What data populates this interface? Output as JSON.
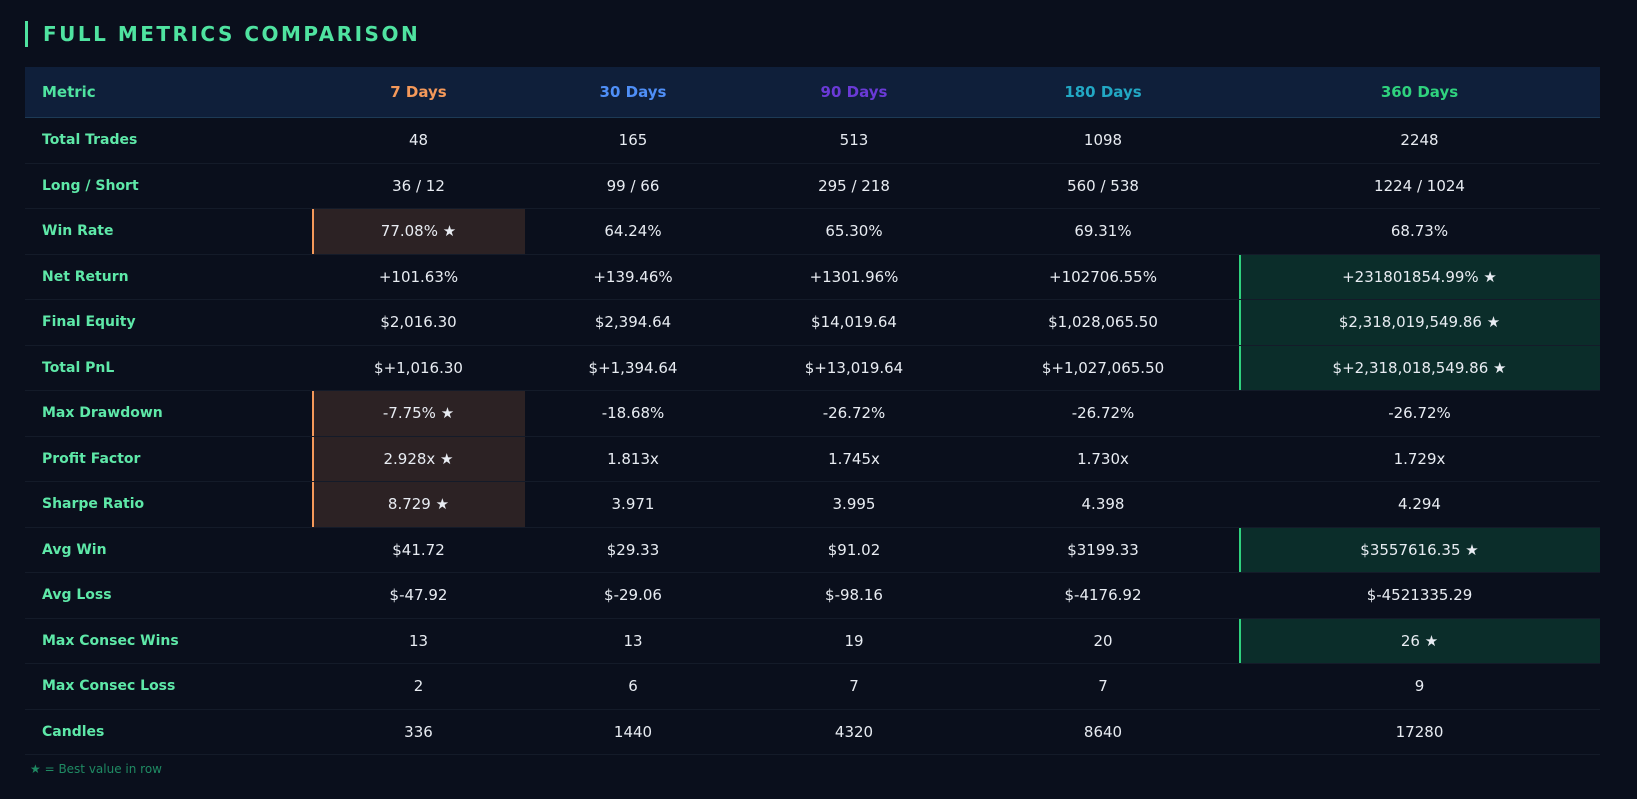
{
  "title": "FULL METRICS COMPARISON",
  "table": {
    "columns": [
      {
        "label": "Metric",
        "color": "#4fe3a0"
      },
      {
        "label": "7 Days",
        "color": "#f5995a",
        "highlight": "#2c2224"
      },
      {
        "label": "30 Days",
        "color": "#4f8ff7"
      },
      {
        "label": "90 Days",
        "color": "#6a3ad6"
      },
      {
        "label": "180 Days",
        "color": "#22a8c4"
      },
      {
        "label": "360 Days",
        "color": "#2fd27e",
        "highlight": "#0b2d2a"
      }
    ],
    "rows": [
      {
        "cells": [
          "Total Trades",
          "48",
          "165",
          "513",
          "1098",
          "2248"
        ]
      },
      {
        "cells": [
          "Long / Short",
          "36 / 12",
          "99 / 66",
          "295 / 218",
          "560 / 538",
          "1224 / 1024"
        ]
      },
      {
        "cells": [
          "Win Rate",
          "77.08% ★",
          "64.24%",
          "65.30%",
          "69.31%",
          "68.73%"
        ],
        "best": 1
      },
      {
        "cells": [
          "Net Return",
          "+101.63%",
          "+139.46%",
          "+1301.96%",
          "+102706.55%",
          "+231801854.99% ★"
        ],
        "best": 5
      },
      {
        "cells": [
          "Final Equity",
          "$2,016.30",
          "$2,394.64",
          "$14,019.64",
          "$1,028,065.50",
          "$2,318,019,549.86 ★"
        ],
        "best": 5
      },
      {
        "cells": [
          "Total PnL",
          "$+1,016.30",
          "$+1,394.64",
          "$+13,019.64",
          "$+1,027,065.50",
          "$+2,318,018,549.86 ★"
        ],
        "best": 5
      },
      {
        "cells": [
          "Max Drawdown",
          "-7.75% ★",
          "-18.68%",
          "-26.72%",
          "-26.72%",
          "-26.72%"
        ],
        "best": 1
      },
      {
        "cells": [
          "Profit Factor",
          "2.928x ★",
          "1.813x",
          "1.745x",
          "1.730x",
          "1.729x"
        ],
        "best": 1
      },
      {
        "cells": [
          "Sharpe Ratio",
          "8.729 ★",
          "3.971",
          "3.995",
          "4.398",
          "4.294"
        ],
        "best": 1
      },
      {
        "cells": [
          "Avg Win",
          "$41.72",
          "$29.33",
          "$91.02",
          "$3199.33",
          "$3557616.35 ★"
        ],
        "best": 5
      },
      {
        "cells": [
          "Avg Loss",
          "$-47.92",
          "$-29.06",
          "$-98.16",
          "$-4176.92",
          "$-4521335.29"
        ]
      },
      {
        "cells": [
          "Max Consec Wins",
          "13",
          "13",
          "19",
          "20",
          "26 ★"
        ],
        "best": 5
      },
      {
        "cells": [
          "Max Consec Loss",
          "2",
          "6",
          "7",
          "7",
          "9"
        ]
      },
      {
        "cells": [
          "Candles",
          "336",
          "1440",
          "4320",
          "8640",
          "17280"
        ]
      }
    ]
  },
  "footnote": "★ = Best value in row"
}
